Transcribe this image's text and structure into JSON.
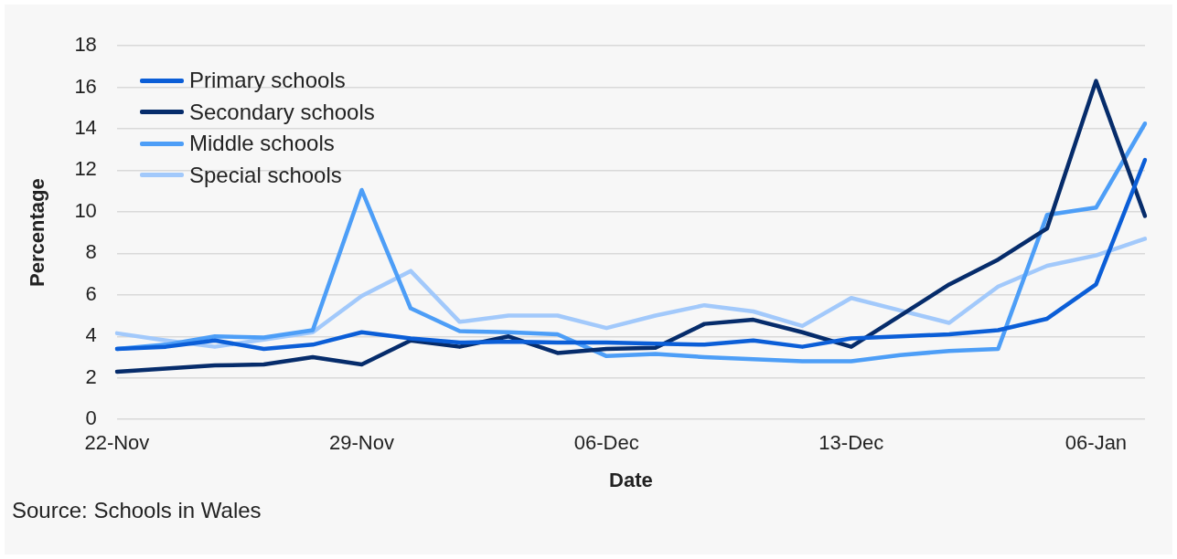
{
  "chart_data": {
    "type": "line",
    "xlabel": "Date",
    "ylabel": "Percentage",
    "annotations": [
      "Source: Schools in Wales"
    ],
    "categories": [
      "22-Nov",
      null,
      null,
      null,
      null,
      "29-Nov",
      null,
      null,
      null,
      null,
      "06-Dec",
      null,
      null,
      null,
      null,
      "13-Dec",
      null,
      null,
      null,
      null,
      "06-Jan",
      null
    ],
    "ylim": [
      0,
      18
    ],
    "yticks": [
      0,
      2,
      4,
      6,
      8,
      10,
      12,
      14,
      16,
      18
    ],
    "grid": "y",
    "legend": "top left",
    "marker": "none",
    "line_style": "solid",
    "series": [
      {
        "name": "Primary schools",
        "color": "#0b5ed7",
        "values": [
          3.4,
          3.5,
          3.8,
          3.4,
          3.6,
          4.2,
          3.9,
          3.7,
          3.75,
          3.7,
          3.7,
          3.65,
          3.6,
          3.8,
          3.5,
          3.9,
          4.0,
          4.1,
          4.3,
          4.85,
          6.5,
          12.5
        ]
      },
      {
        "name": "Secondary schools",
        "color": "#062c6b",
        "values": [
          2.3,
          2.45,
          2.6,
          2.65,
          3.0,
          2.65,
          3.8,
          3.5,
          4.0,
          3.2,
          3.4,
          3.45,
          4.6,
          4.8,
          4.2,
          3.5,
          5.0,
          6.5,
          7.7,
          9.2,
          16.3,
          9.8
        ]
      },
      {
        "name": "Middle schools",
        "color": "#4d9ef7",
        "values": [
          3.4,
          3.6,
          4.0,
          3.95,
          4.3,
          11.05,
          5.35,
          4.25,
          4.2,
          4.1,
          3.05,
          3.15,
          3.0,
          2.9,
          2.8,
          2.8,
          3.1,
          3.3,
          3.4,
          9.85,
          10.2,
          14.25
        ]
      },
      {
        "name": "Special schools",
        "color": "#a2c9fb",
        "values": [
          4.15,
          3.8,
          3.5,
          3.85,
          4.2,
          5.95,
          7.15,
          4.7,
          5.0,
          5.0,
          4.4,
          5.0,
          5.5,
          5.2,
          4.5,
          5.85,
          5.25,
          4.65,
          6.4,
          7.4,
          7.9,
          8.7
        ]
      }
    ]
  }
}
